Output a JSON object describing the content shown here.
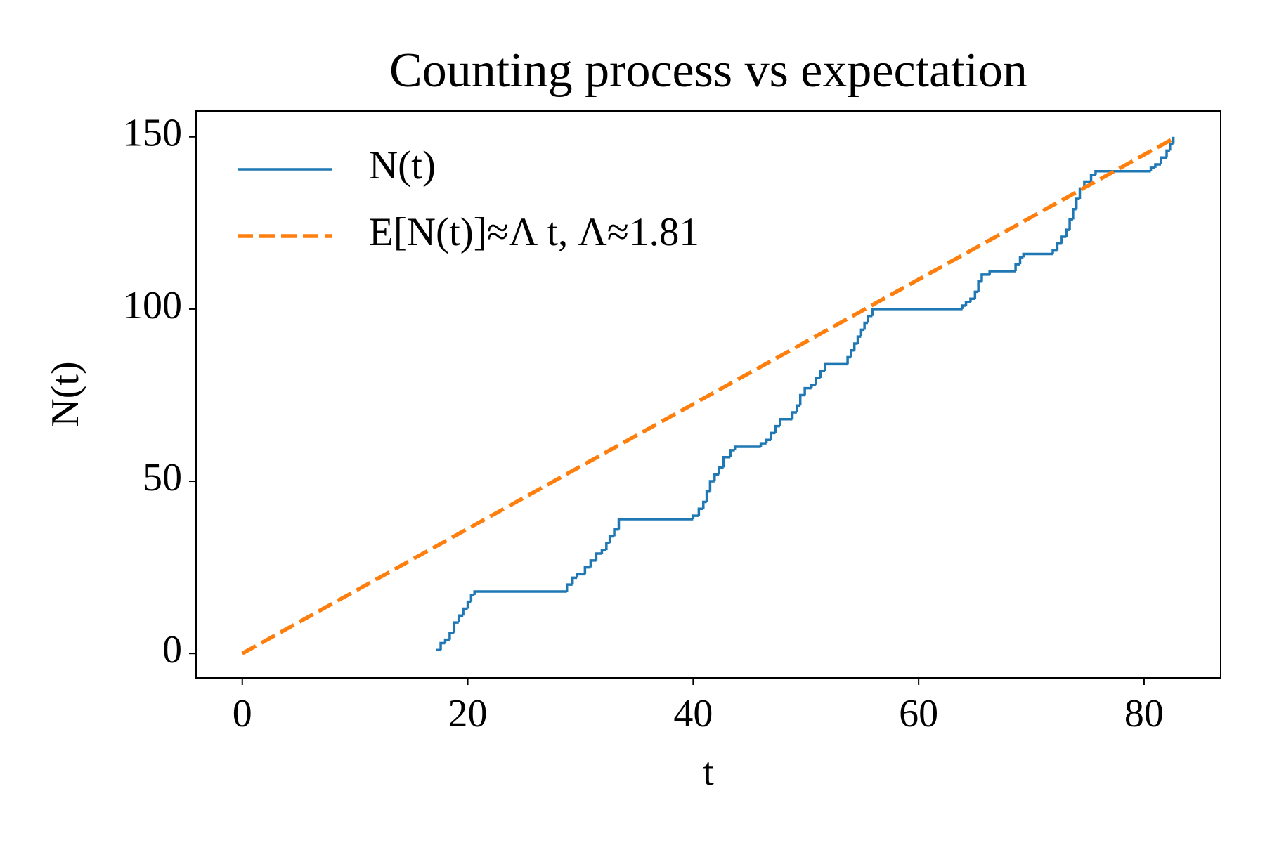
{
  "chart_data": {
    "type": "line",
    "title": "Counting process vs expectation",
    "x_label": "t",
    "y_label": "N(t)",
    "xlim": [
      -4.1,
      86.8
    ],
    "ylim": [
      -7.1,
      157.5
    ],
    "xticks": [
      0,
      20,
      40,
      60,
      80
    ],
    "yticks": [
      0,
      50,
      100,
      150
    ],
    "grid": false,
    "legend": "upper left",
    "series": [
      {
        "name": "N(t)",
        "color": "#1f77b4",
        "style": "steps-post",
        "x": [
          17.2,
          17.6,
          18.0,
          18.4,
          18.8,
          19.2,
          19.6,
          20.0,
          20.3,
          20.6,
          28.8,
          29.3,
          29.7,
          30.4,
          30.9,
          31.4,
          31.9,
          32.3,
          32.6,
          33.0,
          33.4,
          40.0,
          40.5,
          40.9,
          41.2,
          41.5,
          41.9,
          42.3,
          42.7,
          43.3,
          43.7,
          46.0,
          46.5,
          46.9,
          47.3,
          47.7,
          48.8,
          49.2,
          49.5,
          49.9,
          50.5,
          50.9,
          51.3,
          51.7,
          53.7,
          54.0,
          54.3,
          54.6,
          54.9,
          55.2,
          55.5,
          55.9,
          63.9,
          64.2,
          64.6,
          65.0,
          65.3,
          65.6,
          66.3,
          68.6,
          69.0,
          69.3,
          71.9,
          72.3,
          72.7,
          73.1,
          73.4,
          73.7,
          74.0,
          74.3,
          74.7,
          75.3,
          75.7,
          80.6,
          81.0,
          81.5,
          82.0,
          82.3,
          82.6
        ],
        "values": [
          1,
          3,
          4,
          6,
          9,
          11,
          13,
          15,
          17,
          18,
          20,
          22,
          23,
          25,
          27,
          29,
          30,
          32,
          34,
          36,
          39,
          40,
          42,
          44,
          47,
          50,
          52,
          54,
          57,
          59,
          60,
          61,
          62,
          64,
          66,
          68,
          70,
          72,
          75,
          77,
          78,
          80,
          82,
          84,
          86,
          88,
          90,
          92,
          94,
          96,
          98,
          100,
          101,
          102,
          103,
          105,
          108,
          110,
          111,
          113,
          115,
          116,
          117,
          119,
          121,
          123,
          126,
          129,
          132,
          135,
          137,
          139,
          140,
          141,
          142,
          144,
          146,
          148,
          150
        ]
      },
      {
        "name": "E[N(t)]≈Λ t, Λ≈1.81",
        "color": "#ff7f0e",
        "style": "dashed",
        "x": [
          0,
          82.6
        ],
        "values": [
          0,
          149.5
        ]
      }
    ]
  }
}
